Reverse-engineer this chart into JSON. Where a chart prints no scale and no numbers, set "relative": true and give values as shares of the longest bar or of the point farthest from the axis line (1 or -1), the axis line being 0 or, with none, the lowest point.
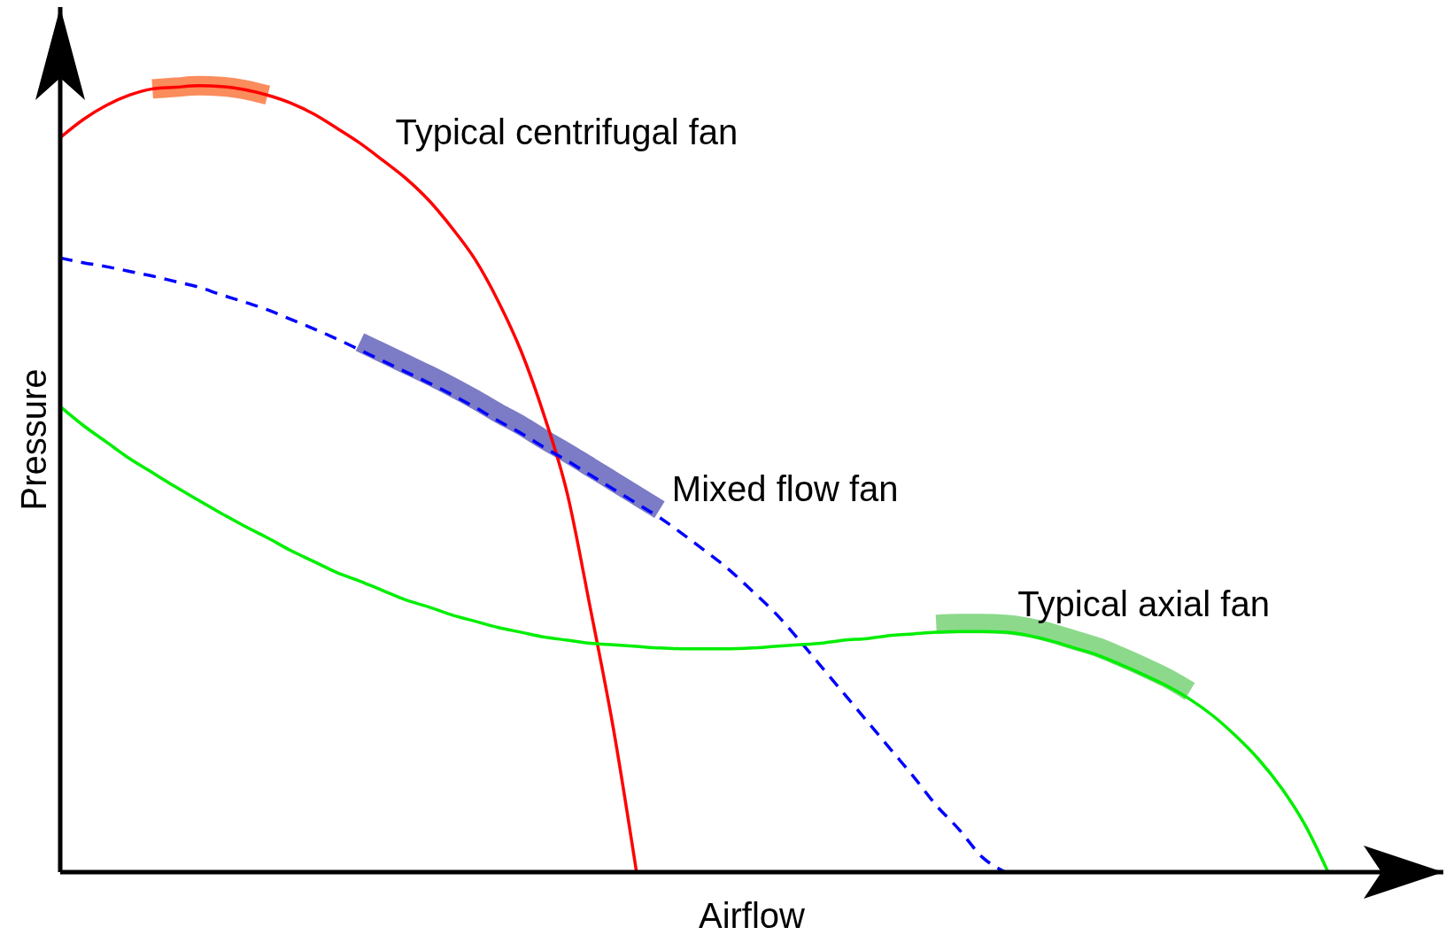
{
  "chart_data": {
    "type": "line",
    "relative": true,
    "xlabel": "Airflow",
    "ylabel": "Pressure",
    "grid": false,
    "legend": false,
    "marker": "none",
    "line_style": "solid",
    "categories": [
      null,
      null,
      null,
      null,
      null,
      null,
      null,
      null,
      null,
      null,
      null,
      null,
      null,
      null,
      null,
      null,
      null,
      null,
      null,
      null,
      null,
      null,
      null,
      null,
      null,
      null,
      null,
      null,
      null,
      null,
      null,
      null,
      null,
      null,
      null,
      null,
      null,
      null,
      null,
      null,
      null,
      null,
      null,
      null,
      null,
      null,
      null,
      null,
      null,
      null,
      null,
      null,
      null,
      null,
      null,
      null,
      null,
      null
    ],
    "series": [
      {
        "color": "#fb8c5c",
        "values": [
          null,
          null,
          null,
          null,
          0.996,
          0.998,
          1.0,
          0.999,
          0.995,
          0.988,
          null,
          null,
          null,
          null,
          null,
          null,
          null,
          null,
          null,
          null,
          null,
          null,
          null,
          null,
          null,
          null,
          null,
          null,
          null,
          null,
          null,
          null,
          null,
          null,
          null,
          null,
          null,
          null,
          null,
          null,
          null,
          null,
          null,
          null,
          null,
          null,
          null,
          null,
          null,
          null,
          null,
          null,
          null,
          null,
          null,
          null,
          null,
          null
        ]
      },
      {
        "color": "#7b7bc6",
        "values": [
          null,
          null,
          null,
          null,
          null,
          null,
          null,
          null,
          null,
          null,
          null,
          null,
          null,
          0.674,
          0.66,
          0.646,
          0.632,
          0.617,
          0.601,
          0.584,
          0.568,
          0.55,
          0.533,
          0.515,
          0.497,
          0.479,
          0.461,
          null,
          null,
          null,
          null,
          null,
          null,
          null,
          null,
          null,
          null,
          null,
          null,
          null,
          null,
          null,
          null,
          null,
          null,
          null,
          null,
          null,
          null,
          null,
          null,
          null,
          null,
          null,
          null,
          null,
          null,
          null
        ]
      },
      {
        "color": "#8cd98c",
        "values": [
          null,
          null,
          null,
          null,
          null,
          null,
          null,
          null,
          null,
          null,
          null,
          null,
          null,
          null,
          null,
          null,
          null,
          null,
          null,
          null,
          null,
          null,
          null,
          null,
          null,
          null,
          null,
          null,
          null,
          null,
          null,
          null,
          null,
          null,
          null,
          null,
          null,
          null,
          0.315,
          0.316,
          0.316,
          0.315,
          0.311,
          0.304,
          0.295,
          0.286,
          0.274,
          0.261,
          0.247,
          0.23,
          null,
          null,
          null,
          null,
          null,
          null,
          null,
          null
        ]
      },
      {
        "name": "Typical centrifugal fan",
        "color": "#ff0000",
        "values": [
          0.934,
          0.957,
          0.975,
          0.988,
          0.996,
          0.998,
          1.0,
          0.999,
          0.995,
          0.988,
          0.978,
          0.964,
          0.946,
          0.927,
          0.905,
          0.882,
          0.854,
          0.819,
          0.779,
          0.726,
          0.662,
          0.58,
          0.481,
          0.335,
          0.182,
          0.0,
          null,
          null,
          null,
          null,
          null,
          null,
          null,
          null,
          null,
          null,
          null,
          null,
          null,
          null,
          null,
          null,
          null,
          null,
          null,
          null,
          null,
          null,
          null,
          null,
          null,
          null,
          null,
          null,
          null,
          null,
          null,
          null
        ]
      },
      {
        "name": "Mixed flow fan",
        "color": "#0000ff",
        "line_style": "dashed",
        "values": [
          0.781,
          0.775,
          0.77,
          0.764,
          0.758,
          0.751,
          0.744,
          0.734,
          0.725,
          0.715,
          0.703,
          0.691,
          0.678,
          0.664,
          0.65,
          0.636,
          0.622,
          0.607,
          0.591,
          0.574,
          0.558,
          0.54,
          0.523,
          0.505,
          0.487,
          0.469,
          0.451,
          0.43,
          0.408,
          0.385,
          0.358,
          0.33,
          0.297,
          0.262,
          0.227,
          0.192,
          0.157,
          0.122,
          0.085,
          0.054,
          0.019,
          0.0,
          null,
          null,
          null,
          null,
          null,
          null,
          null,
          null,
          null,
          null,
          null,
          null,
          null,
          null,
          null,
          null
        ]
      },
      {
        "name": "Typical axial fan",
        "color": "#00ee00",
        "values": [
          0.592,
          0.568,
          0.547,
          0.526,
          0.508,
          0.49,
          0.473,
          0.456,
          0.44,
          0.425,
          0.409,
          0.395,
          0.381,
          0.37,
          0.358,
          0.346,
          0.337,
          0.327,
          0.319,
          0.311,
          0.305,
          0.299,
          0.295,
          0.291,
          0.289,
          0.287,
          0.285,
          0.284,
          0.284,
          0.284,
          0.285,
          0.287,
          0.289,
          0.291,
          0.295,
          0.297,
          0.301,
          0.303,
          0.305,
          0.306,
          0.306,
          0.305,
          0.301,
          0.294,
          0.285,
          0.276,
          0.264,
          0.251,
          0.237,
          0.22,
          0.199,
          0.173,
          0.143,
          0.106,
          0.06,
          0.0,
          null,
          null
        ]
      }
    ]
  }
}
